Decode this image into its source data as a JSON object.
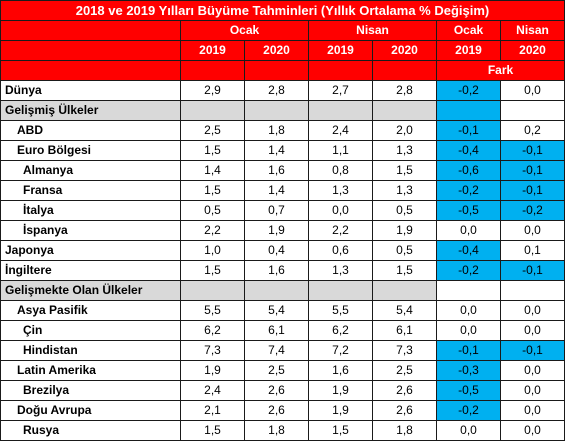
{
  "title": "2018 ve 2019 Yılları Büyüme Tahminleri (Yıllık Ortalama % Değişim)",
  "groups": [
    "Ocak",
    "Nisan",
    "Ocak",
    "Nisan"
  ],
  "years": [
    "2019",
    "2020",
    "2019",
    "2020",
    "2019",
    "2020"
  ],
  "fark_label": "Fark",
  "rows": [
    {
      "type": "data",
      "label": "Dünya",
      "indent": 0,
      "values": [
        "2,9",
        "2,8",
        "2,7",
        "2,8",
        "-0,2",
        "0,0"
      ],
      "highlight": [
        true,
        false
      ]
    },
    {
      "type": "section",
      "label": "Gelişmiş Ülkeler",
      "highlight": [
        true,
        false
      ]
    },
    {
      "type": "data",
      "label": "ABD",
      "indent": 1,
      "values": [
        "2,5",
        "1,8",
        "2,4",
        "2,0",
        "-0,1",
        "0,2"
      ],
      "highlight": [
        true,
        false
      ]
    },
    {
      "type": "data",
      "label": "Euro Bölgesi",
      "indent": 1,
      "values": [
        "1,5",
        "1,4",
        "1,1",
        "1,3",
        "-0,4",
        "-0,1"
      ],
      "highlight": [
        true,
        true
      ]
    },
    {
      "type": "data",
      "label": "Almanya",
      "indent": 2,
      "values": [
        "1,4",
        "1,6",
        "0,8",
        "1,5",
        "-0,6",
        "-0,1"
      ],
      "highlight": [
        true,
        true
      ]
    },
    {
      "type": "data",
      "label": "Fransa",
      "indent": 2,
      "values": [
        "1,5",
        "1,4",
        "1,3",
        "1,3",
        "-0,2",
        "-0,1"
      ],
      "highlight": [
        true,
        true
      ]
    },
    {
      "type": "data",
      "label": "İtalya",
      "indent": 2,
      "values": [
        "0,5",
        "0,7",
        "0,0",
        "0,5",
        "-0,5",
        "-0,2"
      ],
      "highlight": [
        true,
        true
      ]
    },
    {
      "type": "data",
      "label": "İspanya",
      "indent": 2,
      "values": [
        "2,2",
        "1,9",
        "2,2",
        "1,9",
        "0,0",
        "0,0"
      ],
      "highlight": [
        false,
        false
      ]
    },
    {
      "type": "data",
      "label": "Japonya",
      "indent": 0,
      "values": [
        "1,0",
        "0,4",
        "0,6",
        "0,5",
        "-0,4",
        "0,1"
      ],
      "highlight": [
        true,
        false
      ]
    },
    {
      "type": "data",
      "label": "İngiltere",
      "indent": 0,
      "values": [
        "1,5",
        "1,6",
        "1,3",
        "1,5",
        "-0,2",
        "-0,1"
      ],
      "highlight": [
        true,
        true
      ]
    },
    {
      "type": "section",
      "label": "Gelişmekte Olan Ülkeler",
      "highlight": [
        false,
        false
      ]
    },
    {
      "type": "data",
      "label": "Asya Pasifik",
      "indent": 1,
      "values": [
        "5,5",
        "5,4",
        "5,5",
        "5,4",
        "0,0",
        "0,0"
      ],
      "highlight": [
        false,
        false
      ]
    },
    {
      "type": "data",
      "label": "Çin",
      "indent": 2,
      "values": [
        "6,2",
        "6,1",
        "6,2",
        "6,1",
        "0,0",
        "0,0"
      ],
      "highlight": [
        false,
        false
      ]
    },
    {
      "type": "data",
      "label": "Hindistan",
      "indent": 2,
      "values": [
        "7,3",
        "7,4",
        "7,2",
        "7,3",
        "-0,1",
        "-0,1"
      ],
      "highlight": [
        true,
        true
      ]
    },
    {
      "type": "data",
      "label": "Latin Amerika",
      "indent": 1,
      "values": [
        "1,9",
        "2,5",
        "1,6",
        "2,5",
        "-0,3",
        "0,0"
      ],
      "highlight": [
        true,
        false
      ]
    },
    {
      "type": "data",
      "label": "Brezilya",
      "indent": 2,
      "values": [
        "2,4",
        "2,6",
        "1,9",
        "2,6",
        "-0,5",
        "0,0"
      ],
      "highlight": [
        true,
        false
      ]
    },
    {
      "type": "data",
      "label": "Doğu Avrupa",
      "indent": 1,
      "values": [
        "2,1",
        "2,6",
        "1,9",
        "2,6",
        "-0,2",
        "0,0"
      ],
      "highlight": [
        true,
        false
      ]
    },
    {
      "type": "data",
      "label": "Rusya",
      "indent": 2,
      "values": [
        "1,5",
        "1,8",
        "1,5",
        "1,8",
        "0,0",
        "0,0"
      ],
      "highlight": [
        false,
        false
      ]
    }
  ],
  "colors": {
    "header_red": "#ff0000",
    "section_gray": "#d9d9d9",
    "highlight_blue": "#00b0f0"
  }
}
